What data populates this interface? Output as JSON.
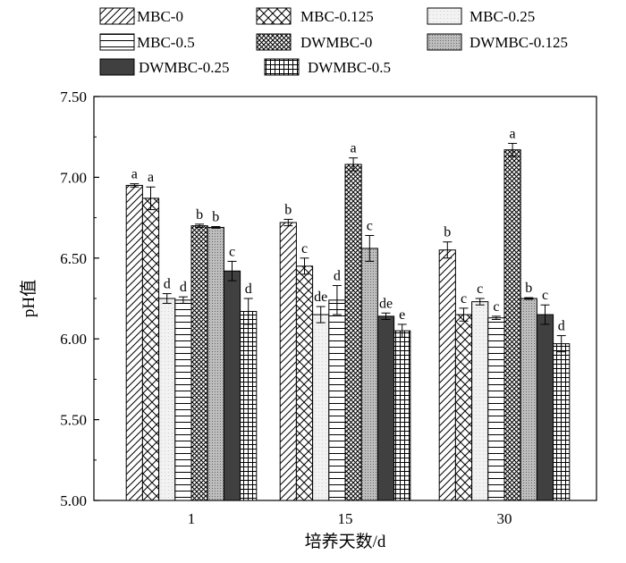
{
  "chart_data": {
    "type": "bar",
    "xlabel": "培养天数/d",
    "ylabel": "pH值",
    "ylim": [
      5.0,
      7.5
    ],
    "yticks": [
      "5.00",
      "5.50",
      "6.00",
      "6.50",
      "7.00",
      "7.50"
    ],
    "categories": [
      "1",
      "15",
      "30"
    ],
    "legend_position": "top",
    "series": [
      {
        "name": "MBC-0",
        "pattern": "diag",
        "values": [
          6.95,
          6.72,
          6.55
        ],
        "errors": [
          0.01,
          0.02,
          0.05
        ],
        "sig": [
          "a",
          "b",
          "b"
        ]
      },
      {
        "name": "MBC-0.125",
        "pattern": "cross",
        "values": [
          6.87,
          6.45,
          6.15
        ],
        "errors": [
          0.07,
          0.05,
          0.04
        ],
        "sig": [
          "a",
          "c",
          "c"
        ]
      },
      {
        "name": "MBC-0.25",
        "pattern": "light",
        "values": [
          6.25,
          6.15,
          6.23
        ],
        "errors": [
          0.03,
          0.05,
          0.02
        ],
        "sig": [
          "d",
          "de",
          "c"
        ]
      },
      {
        "name": "MBC-0.5",
        "pattern": "hlines",
        "values": [
          6.24,
          6.24,
          6.13
        ],
        "errors": [
          0.02,
          0.09,
          0.01
        ],
        "sig": [
          "d",
          "d",
          "c"
        ]
      },
      {
        "name": "DWMBC-0",
        "pattern": "denseCross",
        "values": [
          6.7,
          7.08,
          7.17
        ],
        "errors": [
          0.01,
          0.04,
          0.04
        ],
        "sig": [
          "b",
          "a",
          "a"
        ]
      },
      {
        "name": "DWMBC-0.125",
        "pattern": "dots",
        "values": [
          6.69,
          6.56,
          6.25
        ],
        "errors": [
          0.005,
          0.08,
          0.005
        ],
        "sig": [
          "b",
          "c",
          "b"
        ]
      },
      {
        "name": "DWMBC-0.25",
        "pattern": "dark",
        "values": [
          6.42,
          6.14,
          6.15
        ],
        "errors": [
          0.06,
          0.02,
          0.06
        ],
        "sig": [
          "c",
          "de",
          "c"
        ]
      },
      {
        "name": "DWMBC-0.5",
        "pattern": "grid",
        "values": [
          6.17,
          6.05,
          5.97
        ],
        "errors": [
          0.08,
          0.04,
          0.05
        ],
        "sig": [
          "d",
          "e",
          "d"
        ]
      }
    ]
  }
}
